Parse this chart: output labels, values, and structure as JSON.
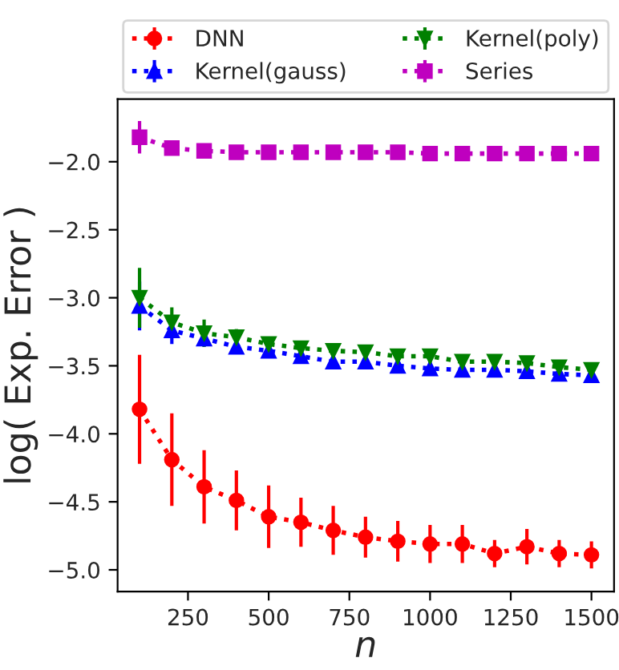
{
  "chart_data": {
    "type": "line",
    "xlabel": "n",
    "ylabel": "log( Exp. Error )",
    "x": [
      100,
      200,
      300,
      400,
      500,
      600,
      700,
      800,
      900,
      1000,
      1100,
      1200,
      1300,
      1400,
      1500
    ],
    "series": [
      {
        "name": "DNN",
        "color": "#ff0000",
        "marker": "circle",
        "values": [
          -3.82,
          -4.19,
          -4.39,
          -4.49,
          -4.61,
          -4.65,
          -4.71,
          -4.76,
          -4.79,
          -4.81,
          -4.81,
          -4.88,
          -4.83,
          -4.88,
          -4.89
        ],
        "errors": [
          0.4,
          0.34,
          0.27,
          0.22,
          0.23,
          0.18,
          0.18,
          0.15,
          0.15,
          0.14,
          0.14,
          0.1,
          0.13,
          0.1,
          0.1
        ]
      },
      {
        "name": "Kernel(gauss)",
        "color": "#0000ff",
        "marker": "triangle",
        "values": [
          -3.06,
          -3.24,
          -3.3,
          -3.36,
          -3.39,
          -3.43,
          -3.47,
          -3.47,
          -3.5,
          -3.52,
          -3.53,
          -3.53,
          -3.54,
          -3.56,
          -3.57
        ],
        "errors": [
          0.18,
          0.1,
          0.06,
          0.05,
          0.05,
          0.05,
          0.05,
          0.05,
          0.04,
          0.04,
          0.04,
          0.04,
          0.04,
          0.04,
          0.04
        ]
      },
      {
        "name": "Kernel(poly)",
        "color": "#008000",
        "marker": "triangle_down",
        "values": [
          -3.0,
          -3.18,
          -3.26,
          -3.29,
          -3.34,
          -3.37,
          -3.39,
          -3.4,
          -3.43,
          -3.43,
          -3.47,
          -3.47,
          -3.48,
          -3.51,
          -3.53
        ],
        "errors": [
          0.22,
          0.11,
          0.1,
          0.06,
          0.05,
          0.05,
          0.05,
          0.05,
          0.05,
          0.05,
          0.05,
          0.05,
          0.05,
          0.04,
          0.04
        ]
      },
      {
        "name": "Series",
        "color": "#bf00bf",
        "marker": "square",
        "values": [
          -1.82,
          -1.9,
          -1.92,
          -1.93,
          -1.93,
          -1.93,
          -1.93,
          -1.93,
          -1.93,
          -1.94,
          -1.94,
          -1.94,
          -1.94,
          -1.94,
          -1.94
        ],
        "errors": [
          0.12,
          0.02,
          0.02,
          0.02,
          0.02,
          0.02,
          0.02,
          0.02,
          0.02,
          0.02,
          0.02,
          0.02,
          0.02,
          0.02,
          0.02
        ]
      }
    ],
    "xlim": [
      32,
      1570
    ],
    "xticks": [
      250,
      500,
      750,
      1000,
      1250,
      1500
    ],
    "ylim": [
      -5.16,
      -1.54
    ],
    "yticks": [
      {
        "value": -5.0,
        "label": "−5.0"
      },
      {
        "value": -4.5,
        "label": "−4.5"
      },
      {
        "value": -4.0,
        "label": "−4.0"
      },
      {
        "value": -3.5,
        "label": "−3.5"
      },
      {
        "value": -3.0,
        "label": "−3.0"
      },
      {
        "value": -2.5,
        "label": "−2.5"
      },
      {
        "value": -2.0,
        "label": "−2.0"
      }
    ],
    "line_style": "dotted",
    "grid": false,
    "legend": "top"
  }
}
